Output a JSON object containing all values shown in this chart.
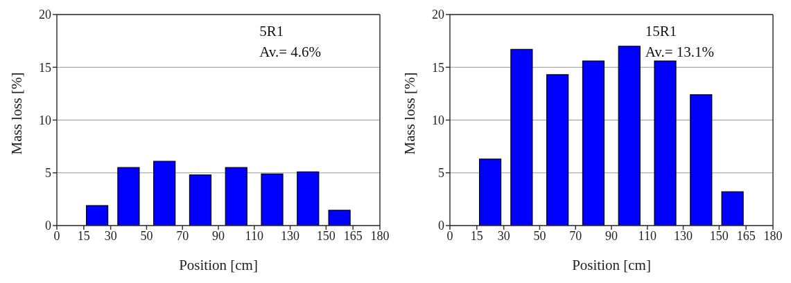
{
  "chart_data": [
    {
      "type": "bar",
      "x": [
        22.5,
        40,
        60,
        80,
        100,
        120,
        140,
        157.5
      ],
      "values": [
        1.9,
        5.5,
        6.1,
        4.8,
        5.5,
        4.9,
        5.1,
        1.45
      ],
      "color": "#0000ff",
      "xlabel": "Position [cm]",
      "ylabel": "Mass loss [%]",
      "xlim": [
        0,
        180
      ],
      "xticks": [
        0,
        15,
        30,
        50,
        70,
        90,
        110,
        130,
        150,
        165,
        180
      ],
      "ylim": [
        0,
        20
      ],
      "yticks": [
        0,
        5,
        10,
        15,
        20
      ],
      "grid": "y",
      "annotations": [
        "5R1",
        "Av.= 4.6%"
      ]
    },
    {
      "type": "bar",
      "x": [
        22.5,
        40,
        60,
        80,
        100,
        120,
        140,
        157.5
      ],
      "values": [
        6.3,
        16.7,
        14.3,
        15.6,
        17.0,
        15.6,
        12.4,
        3.2
      ],
      "color": "#0000ff",
      "xlabel": "Position [cm]",
      "ylabel": "Mass loss [%]",
      "xlim": [
        0,
        180
      ],
      "xticks": [
        0,
        15,
        30,
        50,
        70,
        90,
        110,
        130,
        150,
        165,
        180
      ],
      "ylim": [
        0,
        20
      ],
      "yticks": [
        0,
        5,
        10,
        15,
        20
      ],
      "grid": "y",
      "annotations": [
        "15R1",
        "Av.= 13.1%"
      ]
    }
  ]
}
